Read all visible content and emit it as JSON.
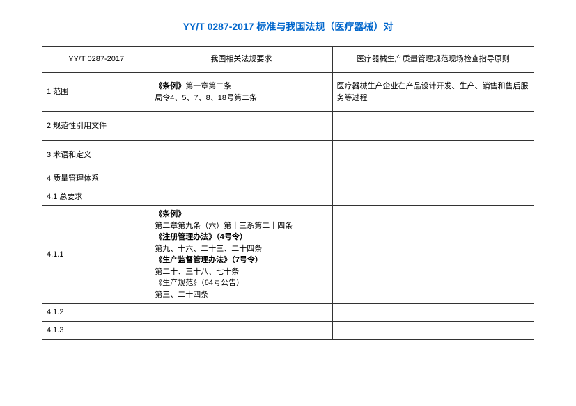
{
  "title": "YY/T 0287-2017 标准与我国法规（医疗器械）对",
  "table": {
    "headers": {
      "col1": "YY/T 0287-2017",
      "col2": "我国相关法规要求",
      "col3": "医疗器械生产质量管理规范现场检查指导原则"
    },
    "rows": [
      {
        "c1": "1 范围",
        "c2_line1": "《条例》",
        "c2_line2": "第一章第二条",
        "c2_line3": "局令4、5、7、8、18号第二条",
        "c3": "医疗器械生产企业在产品设计开发、生产、销售和售后服务等过程",
        "height": "row-tall"
      },
      {
        "c1": "2 规范性引用文件",
        "c2": "",
        "c3": "",
        "height": "row-med"
      },
      {
        "c1": "3 术语和定义",
        "c2": "",
        "c3": "",
        "height": "row-med"
      },
      {
        "c1": "4 质量管理体系",
        "c2": "",
        "c3": "",
        "height": "row-short"
      },
      {
        "c1": "4.1 总要求",
        "c2": "",
        "c3": "",
        "height": "row-short"
      },
      {
        "c1": "4.1.1",
        "c2_b1": "《条例》",
        "c2_t1": "第二章第九条（六）第十三系第二十四条",
        "c2_b2": "《注册管理办法》（4号令）",
        "c2_t2": "第九、十六、二十三、二十四条",
        "c2_b3": "《生产监督管理办法》（7号令）",
        "c2_t3": "第二十、三十八、七十条",
        "c2_t4": "《生产规范》（64号公告）",
        "c2_t5": "第三、二十四条",
        "c3": "",
        "height": "row-big"
      },
      {
        "c1": "4.1.2",
        "c2": "",
        "c3": "",
        "height": "row-sm"
      },
      {
        "c1": "4.1.3",
        "c2": "",
        "c3": "",
        "height": "row-sm"
      }
    ]
  }
}
